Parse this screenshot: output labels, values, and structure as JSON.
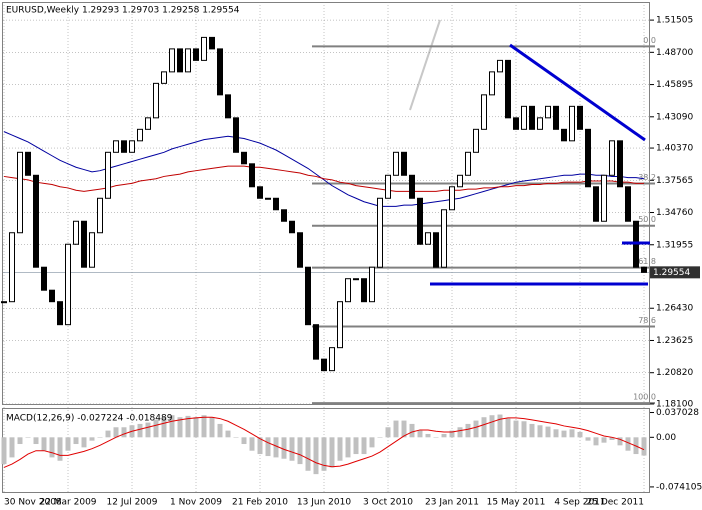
{
  "chart_data": {
    "type": "candlestick",
    "title": "EURUSD,Weekly  1.29293 1.29703 1.29258 1.29554",
    "categories": [
      "30 Nov 2008",
      null,
      null,
      null,
      null,
      null,
      null,
      null,
      "22 Mar 2009",
      null,
      null,
      null,
      null,
      null,
      null,
      null,
      "12 Jul 2009",
      null,
      null,
      null,
      null,
      null,
      null,
      null,
      "1 Nov 2009",
      null,
      null,
      null,
      null,
      null,
      null,
      null,
      "21 Feb 2010",
      null,
      null,
      null,
      null,
      null,
      null,
      null,
      "13 Jun 2010",
      null,
      null,
      null,
      null,
      null,
      null,
      null,
      "3 Oct 2010",
      null,
      null,
      null,
      null,
      null,
      null,
      null,
      "23 Jan 2011",
      null,
      null,
      null,
      null,
      null,
      null,
      null,
      "15 May 2011",
      null,
      null,
      null,
      null,
      null,
      null,
      null,
      "4 Sep 2011",
      null,
      null,
      null,
      null,
      null,
      null,
      null,
      "25 Dec 2011"
    ],
    "series": [
      {
        "name": "EURUSD",
        "color": "#000000",
        "values": [
          1.27,
          1.33,
          1.4,
          1.38,
          1.3,
          1.28,
          1.27,
          1.25,
          1.32,
          1.34,
          1.3,
          1.33,
          1.36,
          1.4,
          1.41,
          1.4,
          1.41,
          1.42,
          1.43,
          1.46,
          1.47,
          1.49,
          1.47,
          1.49,
          1.48,
          1.5,
          1.49,
          1.45,
          1.43,
          1.4,
          1.39,
          1.37,
          1.36,
          1.36,
          1.35,
          1.34,
          1.33,
          1.3,
          1.25,
          1.22,
          1.21,
          1.23,
          1.27,
          1.29,
          1.29,
          1.27,
          1.3,
          1.36,
          1.38,
          1.4,
          1.38,
          1.36,
          1.32,
          1.33,
          1.3,
          1.35,
          1.37,
          1.38,
          1.4,
          1.42,
          1.45,
          1.47,
          1.48,
          1.43,
          1.42,
          1.44,
          1.42,
          1.43,
          1.44,
          1.42,
          1.41,
          1.44,
          1.42,
          1.37,
          1.34,
          1.38,
          1.41,
          1.37,
          1.34,
          1.3,
          1.2955
        ]
      },
      {
        "color": "#0000a0",
        "values": [
          1.418,
          1.415,
          1.412,
          1.409,
          1.405,
          1.401,
          1.397,
          1.393,
          1.39,
          1.387,
          1.385,
          1.383,
          1.384,
          1.386,
          1.388,
          1.39,
          1.392,
          1.394,
          1.396,
          1.398,
          1.4,
          1.403,
          1.405,
          1.407,
          1.409,
          1.411,
          1.412,
          1.413,
          1.414,
          1.413,
          1.412,
          1.41,
          1.408,
          1.405,
          1.402,
          1.398,
          1.394,
          1.39,
          1.386,
          1.381,
          1.376,
          1.371,
          1.367,
          1.363,
          1.36,
          1.357,
          1.355,
          1.353,
          1.353,
          1.353,
          1.354,
          1.354,
          1.355,
          1.356,
          1.357,
          1.358,
          1.359,
          1.36,
          1.362,
          1.364,
          1.366,
          1.368,
          1.37,
          1.372,
          1.374,
          1.375,
          1.376,
          1.377,
          1.378,
          1.379,
          1.38,
          1.38,
          1.381,
          1.381,
          1.38,
          1.38,
          1.379,
          1.379,
          1.378,
          1.378,
          1.377
        ]
      },
      {
        "color": "#c00000",
        "values": [
          1.379,
          1.378,
          1.377,
          1.376,
          1.374,
          1.373,
          1.372,
          1.37,
          1.369,
          1.367,
          1.366,
          1.367,
          1.368,
          1.369,
          1.371,
          1.372,
          1.373,
          1.375,
          1.376,
          1.377,
          1.379,
          1.38,
          1.381,
          1.383,
          1.384,
          1.385,
          1.386,
          1.387,
          1.388,
          1.388,
          1.388,
          1.387,
          1.387,
          1.386,
          1.385,
          1.384,
          1.383,
          1.382,
          1.38,
          1.379,
          1.377,
          1.376,
          1.374,
          1.373,
          1.371,
          1.37,
          1.369,
          1.368,
          1.367,
          1.366,
          1.366,
          1.366,
          1.366,
          1.366,
          1.366,
          1.367,
          1.367,
          1.367,
          1.368,
          1.368,
          1.369,
          1.369,
          1.37,
          1.37,
          1.371,
          1.371,
          1.372,
          1.372,
          1.373,
          1.373,
          1.374,
          1.374,
          1.374,
          1.375,
          1.375,
          1.375,
          1.375,
          1.374,
          1.374,
          1.373,
          1.373
        ]
      }
    ],
    "ylim": [
      1.1801,
      1.5308
    ],
    "yticks": [
      1.51505,
      {
        "value": 1.487,
        "label": "1.48700"
      },
      1.45895,
      {
        "value": 1.4309,
        "label": "1.43090"
      },
      {
        "value": 1.4037,
        "label": "1.40370"
      },
      1.37565,
      {
        "value": 1.3476,
        "label": "1.34760"
      },
      1.31955,
      {
        "value": 1.2643,
        "label": "1.26430"
      },
      1.23625,
      {
        "value": 1.2082,
        "label": "1.20820"
      },
      {
        "value": 1.181,
        "label": "1.18100"
      }
    ],
    "last_price": 1.29554,
    "fib_levels": [
      {
        "label": "0.0",
        "price": 1.4922
      },
      {
        "label": "38.2",
        "price": 1.3729
      },
      {
        "label": "50.0",
        "price": 1.3361
      },
      {
        "label": "61.8",
        "price": 1.2997
      },
      {
        "label": "78.6",
        "price": 1.2484
      },
      {
        "label": "100.0",
        "price": 1.1817
      }
    ],
    "grid": true,
    "macd": {
      "title": "MACD(12,26,9) -0.027224 -0.018489",
      "histogram": {
        "color": "#c0c0c0",
        "values": [
          -0.04,
          -0.03,
          -0.01,
          0.0,
          -0.01,
          -0.02,
          -0.03,
          -0.035,
          -0.02,
          -0.01,
          -0.015,
          -0.005,
          0.0,
          0.01,
          0.015,
          0.015,
          0.018,
          0.02,
          0.022,
          0.026,
          0.03,
          0.033,
          0.03,
          0.032,
          0.03,
          0.033,
          0.03,
          0.02,
          0.01,
          0.0,
          -0.01,
          -0.02,
          -0.025,
          -0.028,
          -0.03,
          -0.032,
          -0.035,
          -0.04,
          -0.05,
          -0.055,
          -0.05,
          -0.045,
          -0.035,
          -0.03,
          -0.025,
          -0.025,
          -0.015,
          0.0,
          0.015,
          0.025,
          0.025,
          0.02,
          0.01,
          0.005,
          0.0,
          0.005,
          0.01,
          0.015,
          0.02,
          0.025,
          0.03,
          0.033,
          0.034,
          0.028,
          0.025,
          0.024,
          0.02,
          0.018,
          0.016,
          0.012,
          0.01,
          0.012,
          0.008,
          -0.005,
          -0.012,
          -0.008,
          -0.004,
          -0.012,
          -0.02,
          -0.025,
          -0.027224
        ]
      },
      "signal": {
        "color": "#e00000",
        "values": [
          -0.045,
          -0.04,
          -0.033,
          -0.025,
          -0.02,
          -0.02,
          -0.023,
          -0.027,
          -0.027,
          -0.024,
          -0.021,
          -0.017,
          -0.012,
          -0.006,
          0.0,
          0.005,
          0.009,
          0.012,
          0.015,
          0.018,
          0.021,
          0.024,
          0.026,
          0.028,
          0.029,
          0.03,
          0.03,
          0.028,
          0.024,
          0.018,
          0.012,
          0.005,
          -0.002,
          -0.008,
          -0.013,
          -0.018,
          -0.022,
          -0.026,
          -0.032,
          -0.038,
          -0.042,
          -0.044,
          -0.043,
          -0.04,
          -0.036,
          -0.032,
          -0.028,
          -0.022,
          -0.014,
          -0.006,
          0.002,
          0.008,
          0.011,
          0.011,
          0.009,
          0.008,
          0.008,
          0.01,
          0.012,
          0.015,
          0.019,
          0.023,
          0.027,
          0.029,
          0.029,
          0.028,
          0.026,
          0.024,
          0.022,
          0.02,
          0.017,
          0.015,
          0.013,
          0.01,
          0.006,
          0.002,
          0.0,
          -0.003,
          -0.008,
          -0.013,
          -0.018489
        ]
      },
      "ylim": [
        -0.0817,
        0.0423
      ],
      "yticks": [
        0.037028,
        {
          "value": 0,
          "label": "0.00"
        },
        -0.074105
      ]
    }
  }
}
